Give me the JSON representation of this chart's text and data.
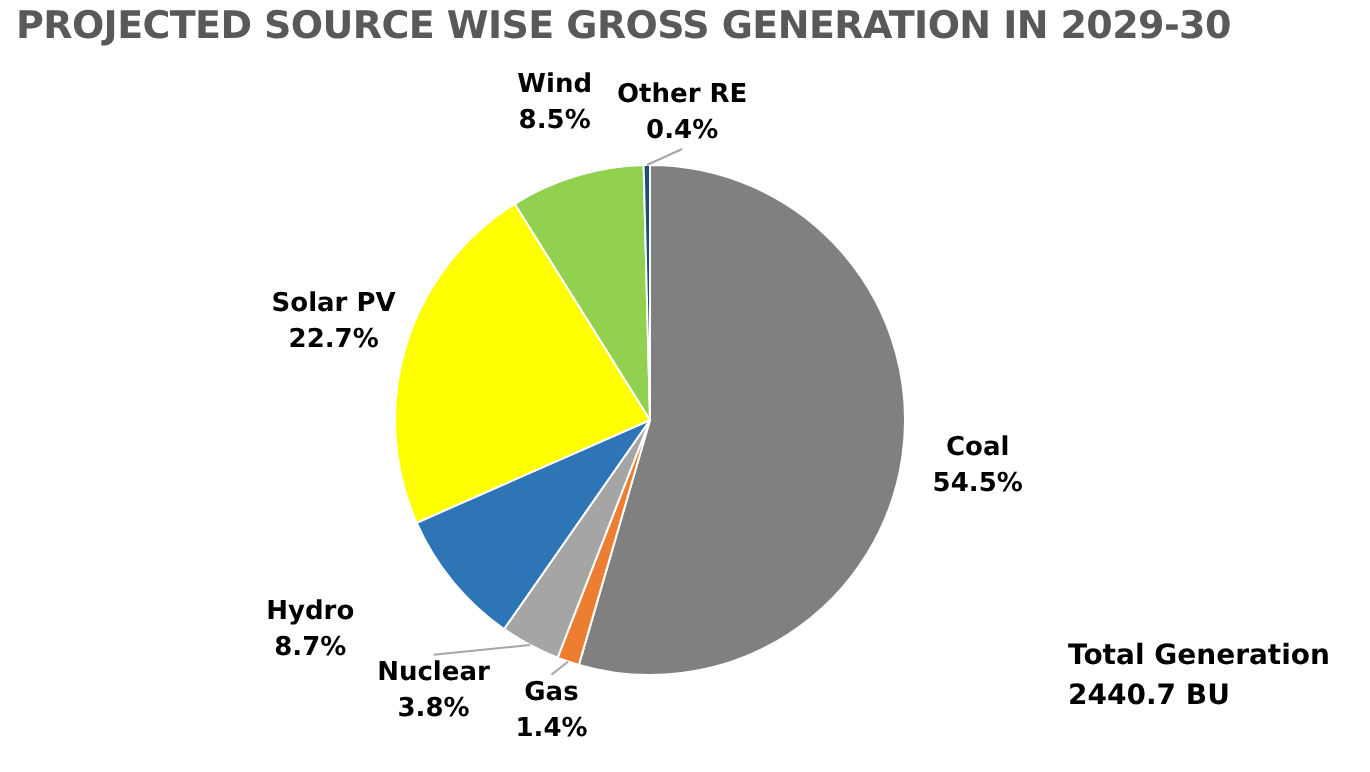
{
  "chart_data": {
    "type": "pie",
    "title": "PROJECTED SOURCE WISE GROSS GENERATION IN 2029-30",
    "categories": [
      "Coal",
      "Gas",
      "Nuclear",
      "Hydro",
      "Solar PV",
      "Wind",
      "Other RE"
    ],
    "values": [
      54.5,
      1.4,
      3.8,
      8.7,
      22.7,
      8.5,
      0.4
    ],
    "colors": [
      "#808080",
      "#ed7d31",
      "#a5a5a5",
      "#2e75b6",
      "#ffff00",
      "#92d050",
      "#1f4e79"
    ],
    "value_labels": [
      "54.5%",
      "1.4%",
      "3.8%",
      "8.7%",
      "22.7%",
      "8.5%",
      "0.4%"
    ],
    "annotations": [
      "Total Generation",
      "2440.7 BU"
    ],
    "legend": false
  }
}
